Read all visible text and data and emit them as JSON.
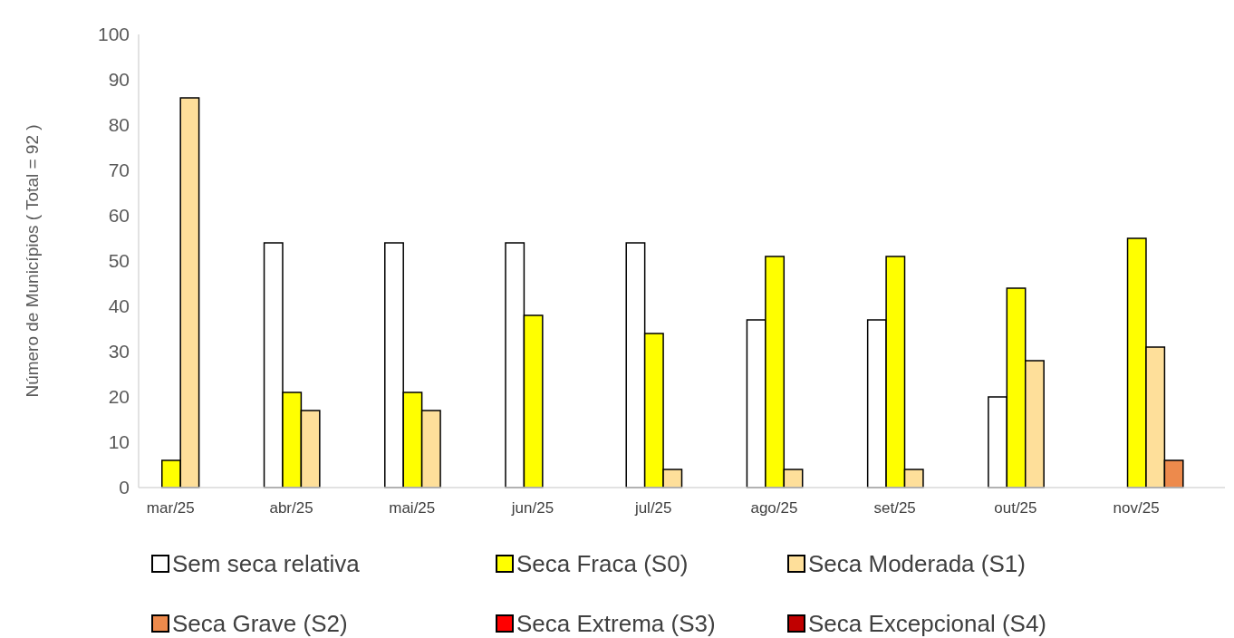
{
  "chart_data": {
    "type": "bar",
    "ylabel": "Número de Municípios ( Total = 92 )",
    "categories": [
      "mar/25",
      "abr/25",
      "mai/25",
      "jun/25",
      "jul/25",
      "ago/25",
      "set/25",
      "out/25",
      "nov/25"
    ],
    "series": [
      {
        "name": "Sem seca relativa",
        "color": "#ffffff",
        "values": [
          0,
          54,
          54,
          54,
          54,
          37,
          37,
          20,
          0
        ]
      },
      {
        "name": "Seca Fraca (S0)",
        "color": "#ffff00",
        "values": [
          6,
          21,
          21,
          38,
          34,
          51,
          51,
          44,
          55
        ]
      },
      {
        "name": "Seca Moderada (S1)",
        "color": "#fedf9a",
        "values": [
          86,
          17,
          17,
          0,
          4,
          4,
          4,
          28,
          31
        ]
      },
      {
        "name": "Seca Grave (S2)",
        "color": "#ed8a4c",
        "values": [
          0,
          0,
          0,
          0,
          0,
          0,
          0,
          0,
          6
        ]
      },
      {
        "name": "Seca Extrema (S3)",
        "color": "#ff0000",
        "values": [
          0,
          0,
          0,
          0,
          0,
          0,
          0,
          0,
          0
        ]
      },
      {
        "name": "Seca Excepcional (S4)",
        "color": "#c00000",
        "values": [
          0,
          0,
          0,
          0,
          0,
          0,
          0,
          0,
          0
        ]
      }
    ],
    "ylim": [
      0,
      100
    ],
    "yticks": [
      0,
      10,
      20,
      30,
      40,
      50,
      60,
      70,
      80,
      90,
      100
    ],
    "grid": false,
    "legend": "bottom"
  }
}
